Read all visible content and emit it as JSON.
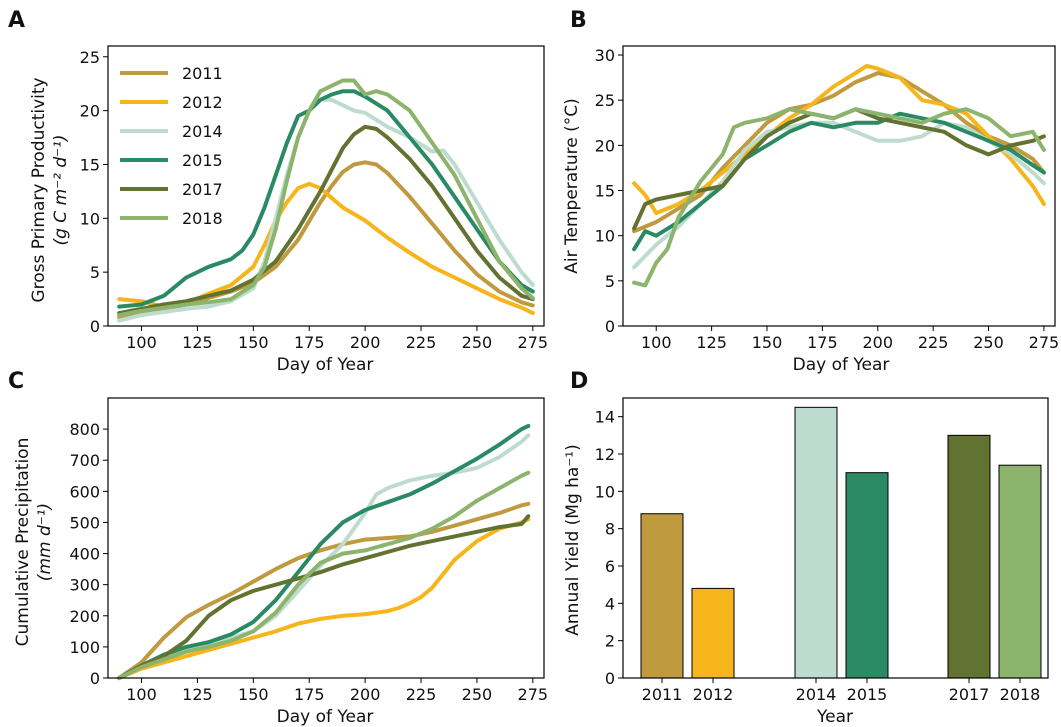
{
  "colors": {
    "2011": "#bf9a3f",
    "2012": "#f7b51c",
    "2014": "#bddccf",
    "2015": "#2a8a63",
    "2017": "#627230",
    "2018": "#8db46d"
  },
  "chart_data": [
    {
      "panel": "A",
      "type": "line",
      "xlabel": "Day of Year",
      "ylabel_line1": "Gross Primary Productivity",
      "ylabel_line2": "(g C m⁻² d⁻¹)",
      "xlim": [
        85,
        280
      ],
      "ylim": [
        0,
        26
      ],
      "xticks": [
        100,
        125,
        150,
        175,
        200,
        225,
        250,
        275
      ],
      "yticks": [
        0,
        5,
        10,
        15,
        20,
        25
      ],
      "legend_position": "upper-left",
      "series": [
        {
          "name": "2011",
          "x": [
            90,
            100,
            110,
            120,
            130,
            140,
            150,
            160,
            170,
            180,
            185,
            190,
            195,
            200,
            205,
            210,
            220,
            230,
            240,
            250,
            260,
            270,
            275
          ],
          "y": [
            0.8,
            1.2,
            1.6,
            2.0,
            2.6,
            3.2,
            4.0,
            5.5,
            8.0,
            11.5,
            13.0,
            14.3,
            15.0,
            15.2,
            15.0,
            14.2,
            12.0,
            9.5,
            7.0,
            4.8,
            3.2,
            2.2,
            1.9
          ]
        },
        {
          "name": "2012",
          "x": [
            90,
            100,
            110,
            120,
            130,
            140,
            150,
            155,
            160,
            165,
            170,
            175,
            180,
            190,
            200,
            210,
            220,
            230,
            240,
            250,
            260,
            270,
            275
          ],
          "y": [
            2.5,
            2.3,
            1.8,
            2.1,
            3.0,
            3.8,
            5.5,
            7.5,
            9.8,
            11.5,
            12.8,
            13.2,
            12.8,
            11.0,
            9.8,
            8.2,
            6.8,
            5.5,
            4.5,
            3.5,
            2.5,
            1.7,
            1.2
          ]
        },
        {
          "name": "2014",
          "x": [
            90,
            100,
            110,
            120,
            130,
            140,
            150,
            155,
            160,
            165,
            170,
            175,
            180,
            185,
            190,
            195,
            200,
            210,
            220,
            230,
            235,
            240,
            250,
            260,
            270,
            275
          ],
          "y": [
            0.5,
            1.0,
            1.3,
            1.6,
            1.8,
            2.3,
            3.5,
            6.0,
            10.0,
            14.0,
            17.5,
            20.0,
            21.0,
            21.0,
            20.5,
            20.0,
            19.8,
            18.5,
            17.5,
            16.2,
            16.3,
            15.0,
            11.5,
            8.0,
            5.0,
            3.8
          ]
        },
        {
          "name": "2015",
          "x": [
            90,
            100,
            110,
            120,
            130,
            140,
            145,
            150,
            155,
            160,
            165,
            170,
            175,
            180,
            185,
            190,
            195,
            200,
            210,
            220,
            230,
            240,
            250,
            260,
            270,
            275
          ],
          "y": [
            1.8,
            2.0,
            2.8,
            4.5,
            5.5,
            6.2,
            7.0,
            8.5,
            11.0,
            14.0,
            17.0,
            19.5,
            20.0,
            21.0,
            21.5,
            21.8,
            21.8,
            21.3,
            20.0,
            17.5,
            15.0,
            12.0,
            9.0,
            6.0,
            3.8,
            3.2
          ]
        },
        {
          "name": "2017",
          "x": [
            90,
            100,
            110,
            120,
            130,
            140,
            150,
            160,
            170,
            180,
            185,
            190,
            195,
            200,
            205,
            210,
            220,
            230,
            240,
            250,
            260,
            270,
            275
          ],
          "y": [
            1.2,
            1.6,
            2.0,
            2.3,
            2.8,
            3.3,
            4.3,
            6.0,
            9.0,
            12.5,
            14.5,
            16.5,
            17.8,
            18.5,
            18.3,
            17.5,
            15.5,
            13.0,
            10.0,
            7.0,
            4.5,
            2.8,
            2.5
          ]
        },
        {
          "name": "2018",
          "x": [
            90,
            100,
            110,
            120,
            130,
            140,
            150,
            155,
            160,
            165,
            170,
            175,
            180,
            185,
            190,
            195,
            200,
            205,
            210,
            220,
            230,
            240,
            250,
            260,
            270,
            275
          ],
          "y": [
            1.0,
            1.4,
            1.7,
            2.0,
            2.2,
            2.5,
            3.8,
            5.5,
            9.0,
            13.5,
            17.5,
            20.0,
            21.8,
            22.3,
            22.8,
            22.8,
            21.5,
            21.8,
            21.5,
            20.0,
            17.0,
            14.0,
            10.0,
            6.0,
            3.5,
            2.6
          ]
        }
      ]
    },
    {
      "panel": "B",
      "type": "line",
      "xlabel": "Day of Year",
      "ylabel": "Air Temperature (°C)",
      "xlim": [
        85,
        280
      ],
      "ylim": [
        0,
        31
      ],
      "xticks": [
        100,
        125,
        150,
        175,
        200,
        225,
        250,
        275
      ],
      "yticks": [
        0,
        5,
        10,
        15,
        20,
        25,
        30
      ],
      "series": [
        {
          "name": "2011",
          "x": [
            90,
            100,
            110,
            120,
            130,
            140,
            150,
            160,
            170,
            180,
            190,
            200,
            210,
            220,
            230,
            240,
            250,
            260,
            270,
            275
          ],
          "y": [
            10.5,
            11.5,
            13.0,
            14.5,
            17.5,
            20.0,
            22.5,
            24.0,
            24.5,
            25.5,
            27.0,
            28.0,
            27.5,
            26.0,
            24.5,
            22.5,
            21.0,
            20.0,
            18.5,
            17.0
          ]
        },
        {
          "name": "2012",
          "x": [
            90,
            95,
            100,
            110,
            120,
            130,
            140,
            150,
            160,
            170,
            180,
            190,
            195,
            200,
            205,
            210,
            220,
            230,
            240,
            250,
            260,
            270,
            275
          ],
          "y": [
            15.8,
            14.5,
            12.5,
            13.5,
            15.0,
            17.0,
            19.0,
            21.0,
            23.0,
            24.5,
            26.5,
            28.0,
            28.8,
            28.5,
            28.0,
            27.5,
            25.0,
            24.5,
            23.5,
            21.0,
            18.5,
            15.5,
            13.5
          ]
        },
        {
          "name": "2014",
          "x": [
            90,
            100,
            110,
            120,
            130,
            140,
            150,
            160,
            170,
            180,
            190,
            200,
            210,
            220,
            230,
            240,
            250,
            260,
            270,
            275
          ],
          "y": [
            6.5,
            9.0,
            11.0,
            13.5,
            16.0,
            19.5,
            21.5,
            22.0,
            22.5,
            22.5,
            21.5,
            20.5,
            20.5,
            21.0,
            22.5,
            22.0,
            20.5,
            19.0,
            17.0,
            15.8
          ]
        },
        {
          "name": "2015",
          "x": [
            90,
            95,
            100,
            110,
            120,
            130,
            140,
            150,
            160,
            170,
            180,
            190,
            200,
            210,
            220,
            230,
            240,
            250,
            260,
            270,
            275
          ],
          "y": [
            8.5,
            10.5,
            10.0,
            11.5,
            13.5,
            15.5,
            18.5,
            20.0,
            21.5,
            22.5,
            22.0,
            22.5,
            22.5,
            23.5,
            23.0,
            22.5,
            21.5,
            20.5,
            19.5,
            17.8,
            17.0
          ]
        },
        {
          "name": "2017",
          "x": [
            90,
            95,
            100,
            110,
            120,
            130,
            140,
            150,
            160,
            170,
            180,
            190,
            200,
            210,
            220,
            230,
            240,
            250,
            260,
            270,
            275
          ],
          "y": [
            10.8,
            13.5,
            14.0,
            14.5,
            15.0,
            15.5,
            18.5,
            21.0,
            22.5,
            23.5,
            23.0,
            24.0,
            23.0,
            22.5,
            22.0,
            21.5,
            20.0,
            19.0,
            20.0,
            20.5,
            21.0
          ]
        },
        {
          "name": "2018",
          "x": [
            90,
            95,
            100,
            105,
            110,
            120,
            130,
            135,
            140,
            150,
            160,
            170,
            180,
            190,
            200,
            210,
            220,
            230,
            240,
            250,
            260,
            270,
            275
          ],
          "y": [
            4.8,
            4.5,
            7.0,
            8.5,
            12.0,
            16.0,
            19.0,
            22.0,
            22.5,
            23.0,
            24.0,
            23.5,
            23.0,
            24.0,
            23.5,
            23.0,
            22.5,
            23.5,
            24.0,
            23.0,
            21.0,
            21.5,
            19.5
          ]
        }
      ]
    },
    {
      "panel": "C",
      "type": "line",
      "xlabel": "Day of Year",
      "ylabel_line1": "Cumulative Precipitation",
      "ylabel_line2": "(mm d⁻¹)",
      "xlim": [
        85,
        280
      ],
      "ylim": [
        0,
        900
      ],
      "xticks": [
        100,
        125,
        150,
        175,
        200,
        225,
        250,
        275
      ],
      "yticks": [
        0,
        100,
        200,
        300,
        400,
        500,
        600,
        700,
        800
      ],
      "series": [
        {
          "name": "2011",
          "x": [
            90,
            100,
            110,
            120,
            130,
            140,
            150,
            160,
            170,
            180,
            190,
            200,
            210,
            220,
            230,
            240,
            250,
            260,
            270,
            273
          ],
          "y": [
            0,
            50,
            130,
            195,
            235,
            270,
            310,
            350,
            385,
            410,
            430,
            445,
            450,
            455,
            470,
            490,
            510,
            530,
            555,
            560
          ]
        },
        {
          "name": "2012",
          "x": [
            90,
            100,
            110,
            120,
            130,
            140,
            150,
            160,
            170,
            180,
            190,
            200,
            210,
            215,
            220,
            225,
            230,
            240,
            250,
            260,
            270,
            273
          ],
          "y": [
            0,
            30,
            50,
            70,
            90,
            110,
            130,
            150,
            175,
            190,
            200,
            205,
            215,
            225,
            240,
            260,
            290,
            380,
            440,
            480,
            500,
            510
          ]
        },
        {
          "name": "2014",
          "x": [
            90,
            100,
            110,
            120,
            130,
            140,
            150,
            160,
            170,
            180,
            190,
            200,
            205,
            210,
            220,
            230,
            240,
            250,
            260,
            270,
            273
          ],
          "y": [
            0,
            40,
            70,
            95,
            110,
            130,
            150,
            200,
            280,
            360,
            430,
            530,
            590,
            610,
            635,
            650,
            660,
            675,
            710,
            760,
            780
          ]
        },
        {
          "name": "2015",
          "x": [
            90,
            100,
            110,
            120,
            130,
            140,
            150,
            160,
            170,
            180,
            190,
            200,
            210,
            220,
            230,
            240,
            250,
            260,
            270,
            273
          ],
          "y": [
            0,
            40,
            75,
            100,
            115,
            140,
            180,
            250,
            340,
            430,
            500,
            540,
            565,
            590,
            625,
            665,
            705,
            750,
            800,
            810
          ]
        },
        {
          "name": "2017",
          "x": [
            90,
            100,
            110,
            120,
            130,
            140,
            150,
            160,
            170,
            180,
            190,
            200,
            210,
            220,
            230,
            240,
            250,
            260,
            270,
            273
          ],
          "y": [
            0,
            40,
            70,
            120,
            200,
            250,
            280,
            300,
            320,
            340,
            365,
            385,
            405,
            425,
            440,
            455,
            470,
            485,
            495,
            520
          ]
        },
        {
          "name": "2018",
          "x": [
            90,
            100,
            110,
            120,
            130,
            140,
            150,
            160,
            170,
            180,
            190,
            200,
            210,
            220,
            230,
            240,
            250,
            260,
            270,
            273
          ],
          "y": [
            0,
            35,
            60,
            85,
            100,
            120,
            150,
            210,
            300,
            370,
            400,
            410,
            430,
            450,
            480,
            520,
            570,
            610,
            650,
            660
          ]
        }
      ]
    },
    {
      "panel": "D",
      "type": "bar",
      "xlabel": "Year",
      "ylabel": "Annual Yield (Mg ha⁻¹)",
      "ylim": [
        0,
        15
      ],
      "yticks": [
        0,
        2,
        4,
        6,
        8,
        10,
        12,
        14
      ],
      "categories": [
        "2011",
        "2012",
        "2014",
        "2015",
        "2017",
        "2018"
      ],
      "values": [
        8.8,
        4.8,
        14.5,
        11.0,
        13.0,
        11.4
      ]
    }
  ]
}
